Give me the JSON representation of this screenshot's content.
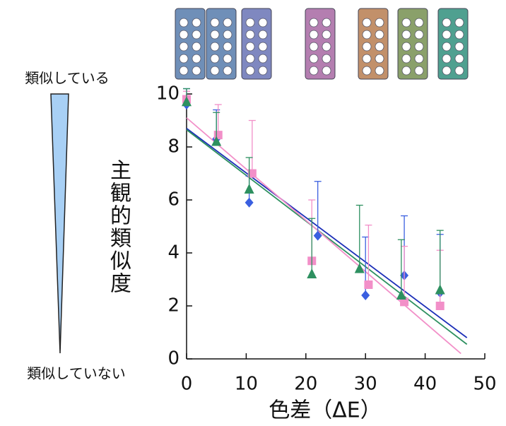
{
  "chart_data": {
    "type": "scatter",
    "xlabel": "色差（ΔE）",
    "ylabel": "主観的類似度",
    "annotations": [
      "類似している",
      "類似していない"
    ],
    "xlim": [
      0,
      50
    ],
    "xticks": [
      0,
      10,
      20,
      30,
      40,
      50
    ],
    "ylim": [
      0,
      10
    ],
    "yticks": [
      0,
      2,
      4,
      6,
      8,
      10
    ],
    "series": [
      {
        "color": "#3a5fe0",
        "marker": "diamond",
        "x": [
          0,
          5,
          10.5,
          22,
          30,
          36.5,
          42.5
        ],
        "values": [
          9.6,
          8.3,
          5.9,
          4.65,
          2.4,
          3.15,
          2.5
        ],
        "errors": [
          0.6,
          1.1,
          1.0,
          2.05,
          2.2,
          2.25,
          2.2
        ]
      },
      {
        "color": "#f28fc8",
        "marker": "square",
        "x": [
          0,
          5.3,
          11,
          21,
          30.5,
          36.5,
          42.5
        ],
        "values": [
          9.8,
          8.45,
          7.0,
          3.7,
          2.8,
          2.15,
          2.0
        ],
        "errors": [
          0.3,
          1.15,
          2.0,
          2.3,
          2.25,
          2.1,
          2.1
        ]
      },
      {
        "color": "#2e9060",
        "marker": "triangle",
        "x": [
          0,
          5,
          10.5,
          21,
          29,
          36,
          42.5
        ],
        "values": [
          9.7,
          8.2,
          6.4,
          3.2,
          3.4,
          2.4,
          2.6
        ],
        "errors": [
          0.5,
          1.1,
          1.2,
          2.1,
          2.4,
          2.1,
          2.25
        ]
      }
    ],
    "trendlines": [
      {
        "color": "#1c2fb8",
        "x": [
          0,
          47
        ],
        "values": [
          8.7,
          0.8
        ]
      },
      {
        "color": "#2e9060",
        "x": [
          0,
          47
        ],
        "values": [
          8.65,
          0.55
        ]
      },
      {
        "color": "#f28fc8",
        "x": [
          0,
          46
        ],
        "values": [
          9.1,
          0.2
        ]
      }
    ]
  }
}
